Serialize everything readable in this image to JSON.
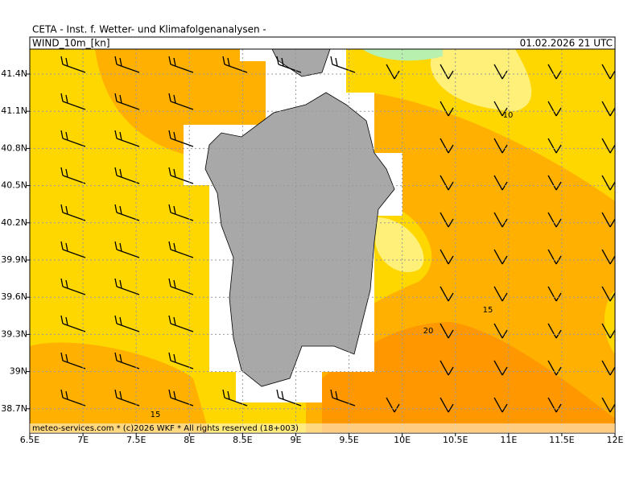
{
  "header": {
    "title": "CETA - Inst. f. Wetter- und Klimafolgenanalysen -",
    "field": "WIND_10m_[kn]",
    "valid": "01.02.2026 21 UTC"
  },
  "axes": {
    "lat_labels": [
      "41.4N",
      "41.1N",
      "40.8N",
      "40.5N",
      "40.2N",
      "39.9N",
      "39.6N",
      "39.3N",
      "39N",
      "38.7N"
    ],
    "lon_labels": [
      "6.5E",
      "7E",
      "7.5E",
      "8E",
      "8.5E",
      "9E",
      "9.5E",
      "10E",
      "10.5E",
      "11E",
      "11.5E",
      "12E"
    ]
  },
  "contour_labels": [
    "10",
    "15",
    "20",
    "15"
  ],
  "footer": "meteo-services.com * (c)2026 WKF * All rights reserved (18+003)"
}
